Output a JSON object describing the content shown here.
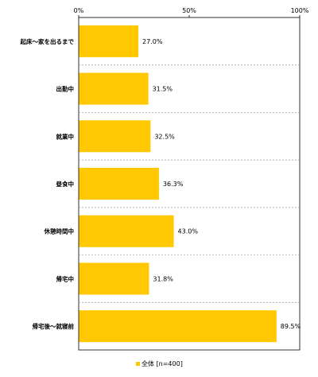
{
  "chart_data": {
    "type": "bar",
    "orientation": "horizontal",
    "title": "",
    "xlabel": "",
    "ylabel": "",
    "categories": [
      "起床～家を出るまで",
      "出勤中",
      "就業中",
      "昼食中",
      "休憩時間中",
      "帰宅中",
      "帰宅後～就寝前"
    ],
    "series": [
      {
        "name": "全体 [n=400]",
        "values": [
          27.0,
          31.5,
          32.5,
          36.3,
          43.0,
          31.8,
          89.5
        ],
        "value_labels": [
          "27.0%",
          "31.5%",
          "32.5%",
          "36.3%",
          "43.0%",
          "31.8%",
          "89.5%"
        ],
        "color": "#ffc800"
      }
    ],
    "xlim": [
      0,
      100
    ],
    "x_ticks": [
      0,
      50,
      100
    ],
    "x_tick_labels": [
      "0%",
      "50%",
      "100%"
    ],
    "grid": true,
    "legend_position": "bottom-left"
  }
}
